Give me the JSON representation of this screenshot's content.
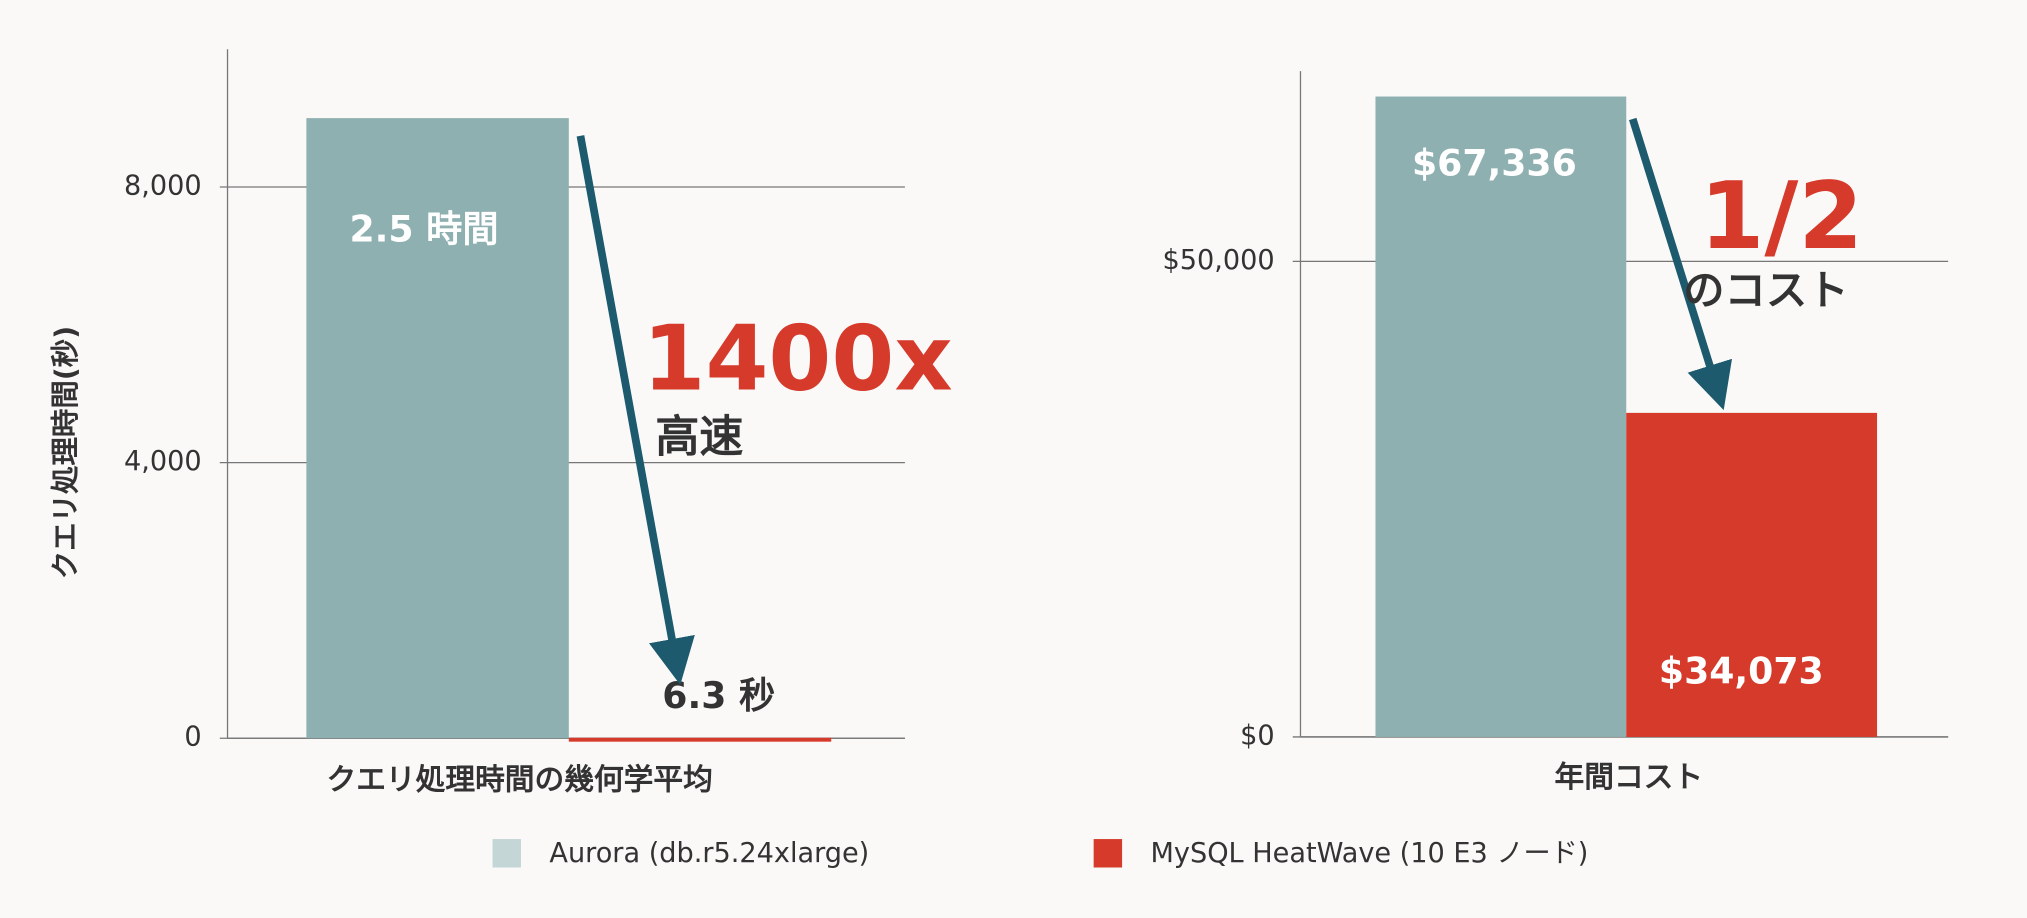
{
  "chart_data": [
    {
      "type": "bar",
      "y_label": "クエリ処理時間(秒)",
      "categories": [
        "クエリ処理時間の幾何学平均"
      ],
      "series": [
        {
          "name": "Aurora (db.r5.24xlarge)",
          "color": "#8fb0b0",
          "legend_color": "#c5d6d6",
          "values": [
            9000
          ],
          "value_labels": [
            "2.5 時間"
          ]
        },
        {
          "name": "MySQL HeatWave (10 E3 ノード)",
          "color": "#d63a2a",
          "legend_color": "#d63a2a",
          "values": [
            6.3
          ],
          "value_labels": [
            "6.3 秒"
          ]
        }
      ],
      "ylim": [
        0,
        10000
      ],
      "yticks": [
        0,
        {
          "value": 4000,
          "label": "4,000"
        },
        {
          "value": 8000,
          "label": "8,000"
        }
      ],
      "grid": true,
      "annotations": [
        "1400x",
        "高速"
      ]
    },
    {
      "type": "bar",
      "categories": [
        "年間コスト"
      ],
      "series": [
        {
          "color": "#8fb0b0",
          "values": [
            67336
          ],
          "value_labels": [
            "$67,336"
          ]
        },
        {
          "color": "#d63a2a",
          "values": [
            34073
          ],
          "value_labels": [
            "$34,073"
          ]
        }
      ],
      "ylim": [
        0,
        70000
      ],
      "yticks": [
        {
          "value": 0,
          "label": "$0"
        },
        {
          "value": 50000,
          "label": "$50,000"
        }
      ],
      "grid": true,
      "annotations": [
        "1/2",
        "のコスト"
      ]
    }
  ]
}
